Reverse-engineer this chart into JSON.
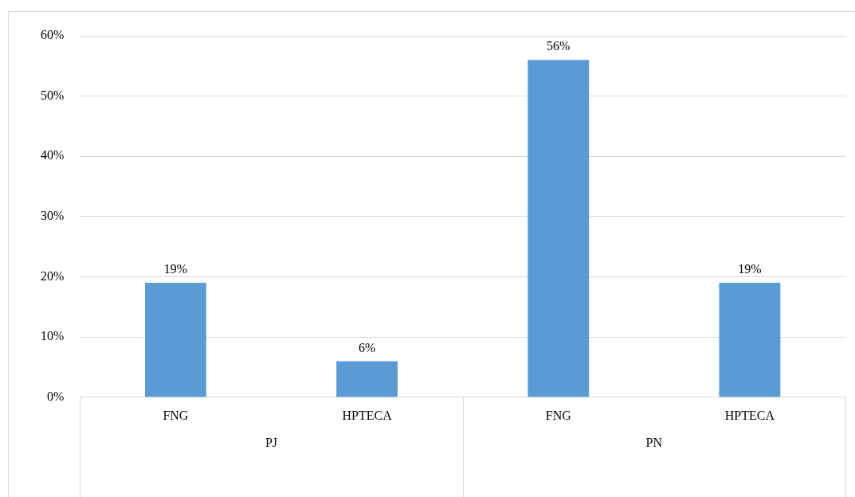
{
  "chart_data": {
    "type": "bar",
    "categories": [
      "FNG",
      "HPTECA",
      "FNG",
      "HPTECA"
    ],
    "values": [
      19,
      6,
      56,
      19
    ],
    "color": "#5b9bd5",
    "value_labels": [
      "19%",
      "6%",
      "56%",
      "19%"
    ],
    "ylim": [
      0,
      60
    ],
    "yticks": [
      {
        "value": 0,
        "label": "0%"
      },
      {
        "value": 10,
        "label": "10%"
      },
      {
        "value": 20,
        "label": "20%"
      },
      {
        "value": 30,
        "label": "30%"
      },
      {
        "value": 40,
        "label": "40%"
      },
      {
        "value": 50,
        "label": "50%"
      },
      {
        "value": 60,
        "label": "60%"
      }
    ],
    "annotations": [
      "PJ",
      "PN"
    ],
    "grid": "y",
    "legend": false
  }
}
